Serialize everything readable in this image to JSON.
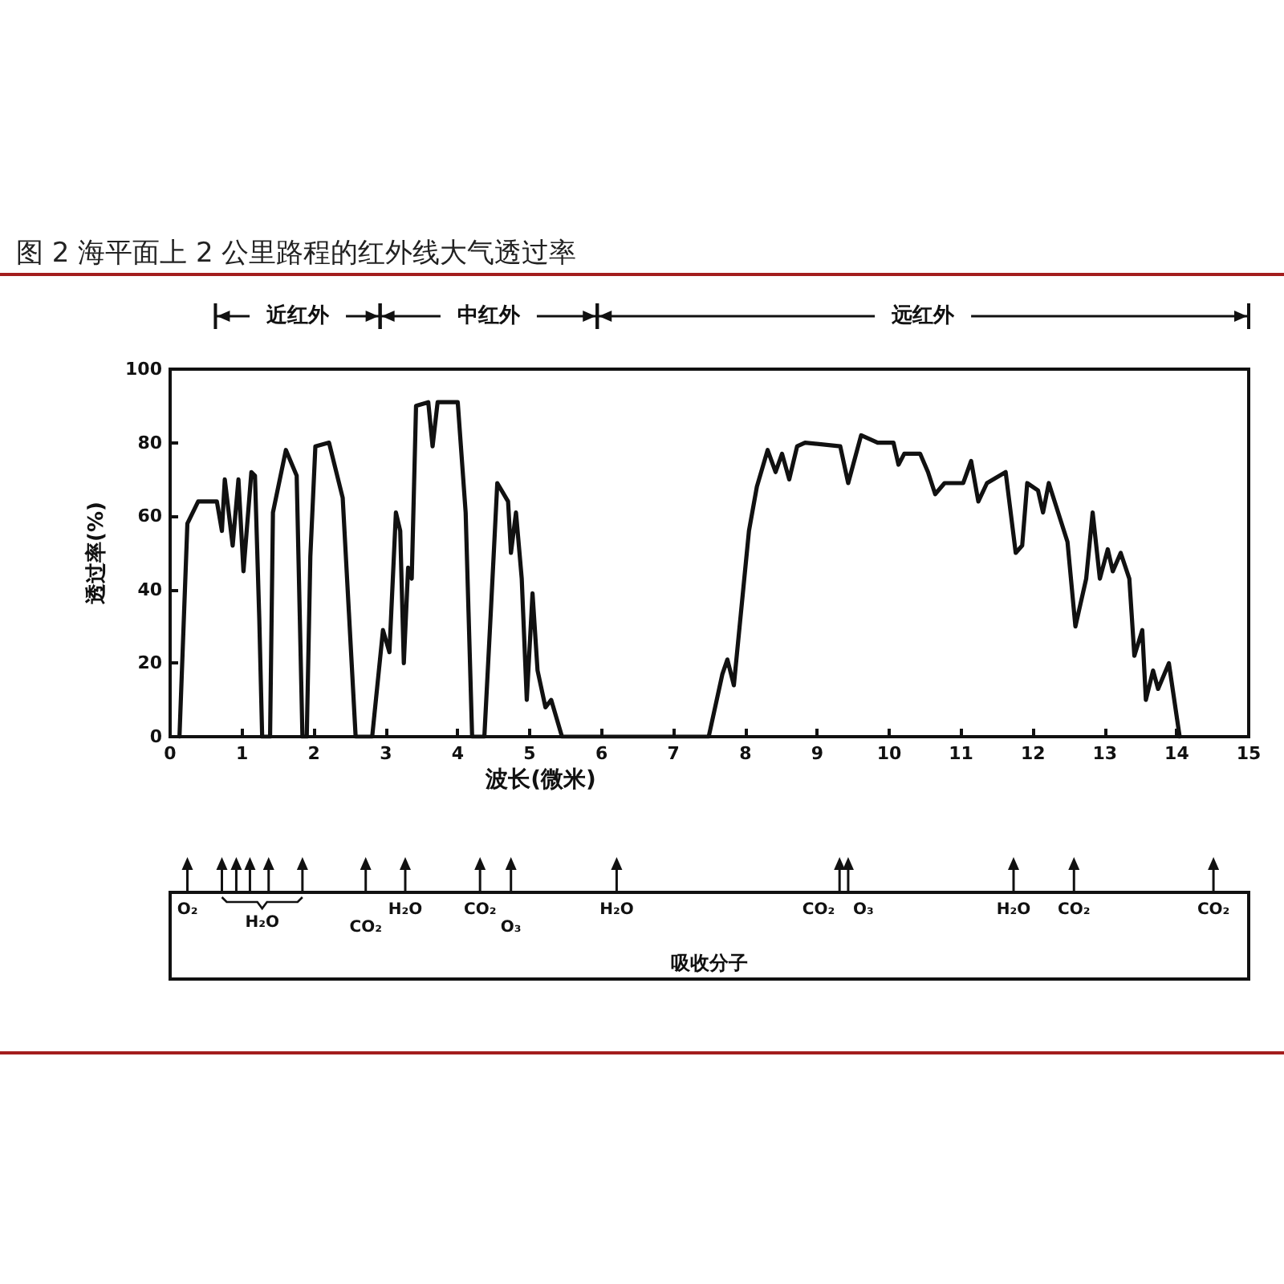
{
  "chart_data": {
    "type": "line",
    "title": "图 2 海平面上 2 公里路程的红外线大气透过率",
    "xlabel": "波长(微米)",
    "ylabel": "透过率(%)",
    "color": "#111111",
    "x": [
      0.13,
      0.24,
      0.39,
      0.65,
      0.72,
      0.76,
      0.87,
      0.95,
      1.02,
      1.13,
      1.18,
      1.24,
      1.28,
      1.39,
      1.43,
      1.61,
      1.76,
      1.84,
      1.9,
      1.95,
      2.02,
      2.21,
      2.4,
      2.58,
      2.81,
      2.96,
      3.05,
      3.14,
      3.2,
      3.25,
      3.31,
      3.36,
      3.42,
      3.59,
      3.65,
      3.72,
      4.0,
      4.11,
      4.2,
      4.37,
      4.46,
      4.55,
      4.7,
      4.74,
      4.81,
      4.89,
      4.96,
      5.04,
      5.11,
      5.22,
      5.3,
      5.45,
      7.49,
      7.68,
      7.75,
      7.84,
      8.05,
      8.16,
      8.31,
      8.42,
      8.51,
      8.61,
      8.72,
      8.83,
      9.32,
      9.43,
      9.61,
      9.84,
      10.06,
      10.13,
      10.21,
      10.43,
      10.54,
      10.64,
      10.77,
      11.03,
      11.14,
      11.24,
      11.36,
      11.62,
      11.76,
      11.85,
      11.92,
      12.07,
      12.14,
      12.22,
      12.48,
      12.59,
      12.74,
      12.83,
      12.93,
      13.04,
      13.11,
      13.22,
      13.34,
      13.41,
      13.52,
      13.57,
      13.67,
      13.74,
      13.89,
      14.04
    ],
    "values": [
      0,
      58,
      64,
      64,
      56,
      70,
      52,
      70,
      45,
      72,
      71,
      32,
      0,
      0,
      61,
      78,
      71,
      0,
      0,
      49,
      79,
      80,
      65,
      0,
      0,
      29,
      23,
      61,
      56,
      20,
      46,
      43,
      90,
      91,
      79,
      91,
      91,
      61,
      0,
      0,
      34,
      69,
      64,
      50,
      61,
      43,
      10,
      39,
      18,
      8,
      10,
      0,
      0,
      17,
      21,
      14,
      56,
      68,
      78,
      72,
      77,
      70,
      79,
      80,
      79,
      69,
      82,
      80,
      80,
      74,
      77,
      77,
      72,
      66,
      69,
      69,
      75,
      64,
      69,
      72,
      50,
      52,
      69,
      67,
      61,
      69,
      53,
      30,
      43,
      61,
      43,
      51,
      45,
      50,
      43,
      22,
      29,
      10,
      18,
      13,
      20,
      0
    ],
    "xlim": [
      0,
      15
    ],
    "xticks": [
      0,
      1,
      2,
      3,
      4,
      5,
      6,
      7,
      8,
      9,
      10,
      11,
      12,
      13,
      14,
      15
    ],
    "ylim": [
      0,
      100
    ],
    "yticks": [
      0,
      20,
      40,
      60,
      80,
      100
    ],
    "grid": false,
    "marker": "none",
    "line_style": "solid",
    "annotations": [
      "近红外",
      "中红外",
      "远红外",
      "O₂",
      "H₂O",
      "CO₂",
      "H₂O",
      "CO₂",
      "O₃",
      "H₂O",
      "CO₂",
      "O₃",
      "H₂O",
      "CO₂",
      "CO₂",
      "吸收分子"
    ]
  }
}
